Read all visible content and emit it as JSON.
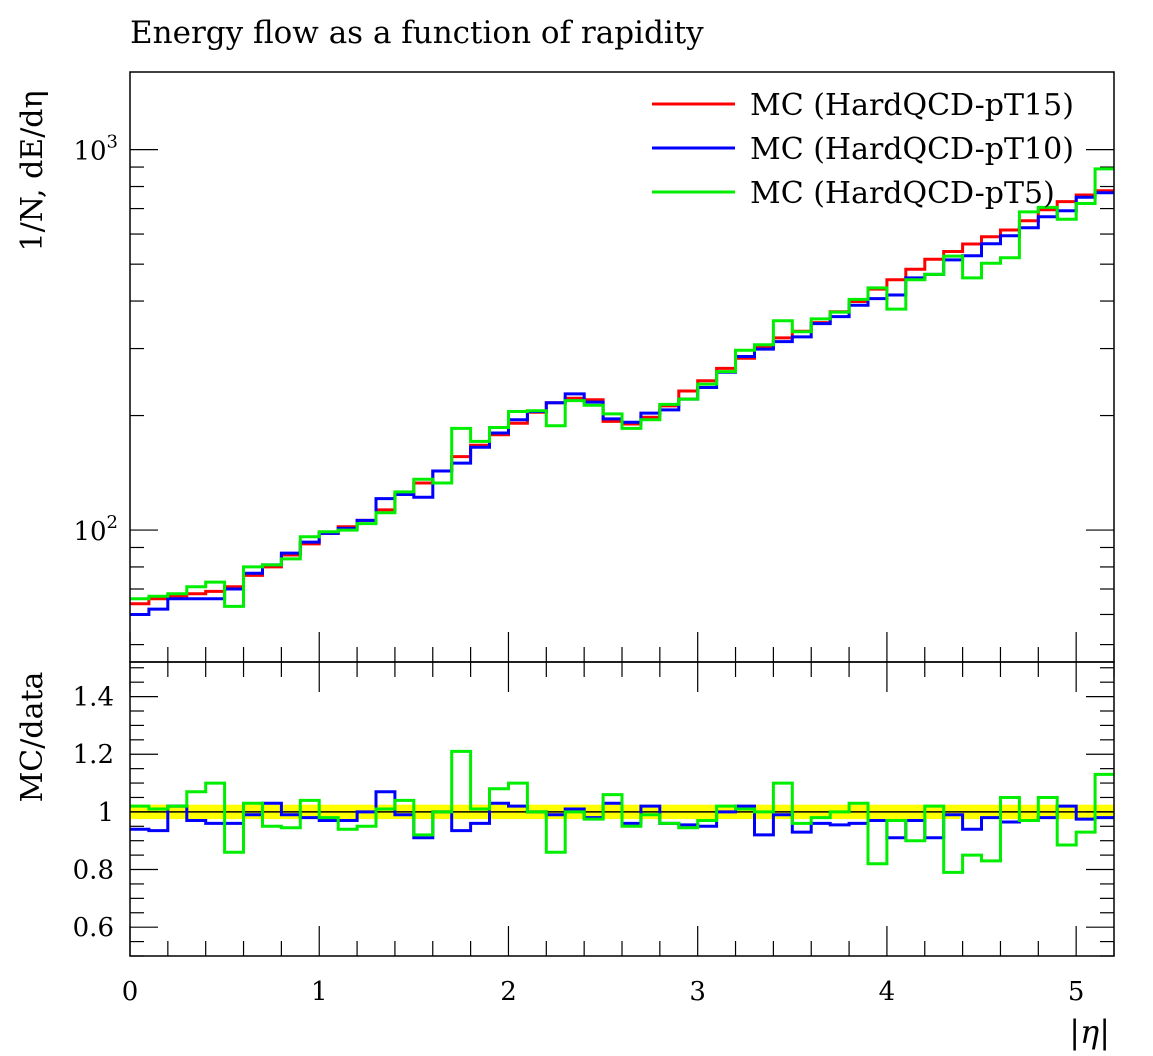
{
  "chart_data": [
    {
      "type": "line",
      "title": "Energy flow as a function of rapidity",
      "ylabel": "1/N, dE/dη",
      "yscale": "log",
      "ylim": [
        45,
        1600
      ],
      "xlim": [
        0,
        5.2
      ],
      "y_ticks": [
        {
          "value": 100,
          "label_base": "10",
          "label_exp": "2"
        },
        {
          "value": 1000,
          "label_base": "10",
          "label_exp": "3"
        }
      ],
      "legend": {
        "position": "top-right"
      },
      "bin_edges": [
        0,
        0.1,
        0.2,
        0.3,
        0.4,
        0.5,
        0.6,
        0.7,
        0.8,
        0.9,
        1.0,
        1.1,
        1.2,
        1.3,
        1.4,
        1.5,
        1.6,
        1.7,
        1.8,
        1.9,
        2.0,
        2.1,
        2.2,
        2.3,
        2.4,
        2.5,
        2.6,
        2.7,
        2.8,
        2.9,
        3.0,
        3.1,
        3.2,
        3.3,
        3.4,
        3.5,
        3.6,
        3.7,
        3.8,
        3.9,
        4.0,
        4.1,
        4.2,
        4.3,
        4.4,
        4.5,
        4.6,
        4.7,
        4.8,
        4.9,
        5.0,
        5.1,
        5.2
      ],
      "series": [
        {
          "name": "MC (HardQCD-pT15)",
          "color": "#ff0000",
          "values": [
            64,
            66,
            67,
            68,
            69,
            71,
            76,
            80,
            86,
            92,
            98,
            102,
            106,
            113,
            124,
            133,
            143,
            156,
            167,
            178,
            191,
            204,
            216,
            222,
            220,
            193,
            190,
            198,
            212,
            232,
            247,
            266,
            283,
            302,
            320,
            333,
            351,
            375,
            399,
            430,
            455,
            485,
            515,
            540,
            565,
            590,
            615,
            650,
            695,
            730,
            760,
            780
          ]
        },
        {
          "name": "MC (HardQCD-pT10)",
          "color": "#0000ff",
          "values": [
            60,
            62,
            66,
            66,
            66,
            70,
            77,
            81,
            87,
            93,
            98,
            101,
            106,
            121,
            124,
            122,
            143,
            150,
            165,
            180,
            195,
            205,
            216,
            228,
            217,
            196,
            192,
            203,
            207,
            221,
            237,
            260,
            286,
            299,
            313,
            322,
            349,
            364,
            390,
            406,
            415,
            460,
            470,
            513,
            526,
            566,
            594,
            623,
            666,
            691,
            750,
            770
          ]
        },
        {
          "name": "MC (HardQCD-pT5)",
          "color": "#00ee00",
          "values": [
            66,
            67,
            68,
            71,
            73,
            63,
            80,
            81,
            84,
            96,
            99,
            100,
            104,
            111,
            126,
            136,
            133,
            185,
            171,
            186,
            205,
            206,
            188,
            219,
            213,
            202,
            185,
            195,
            214,
            221,
            242,
            261,
            297,
            307,
            355,
            332,
            359,
            374,
            404,
            433,
            381,
            455,
            470,
            525,
            460,
            503,
            520,
            686,
            705,
            656,
            722,
            890
          ]
        }
      ]
    },
    {
      "type": "line",
      "ylabel": "MC/data",
      "xlabel": "|η|",
      "ylim": [
        0.5,
        1.52
      ],
      "xlim": [
        0,
        5.2
      ],
      "y_ticks": [
        0.6,
        0.8,
        1.0,
        1.2,
        1.4
      ],
      "y_tick_labels": [
        "0.6",
        "0.8",
        "1",
        "1.2",
        "1.4"
      ],
      "x_ticks": [
        0,
        1,
        2,
        3,
        4,
        5
      ],
      "x_tick_labels": [
        "0",
        "1",
        "2",
        "3",
        "4",
        "5"
      ],
      "reference_line": 1.0,
      "band": {
        "low": 0.975,
        "high": 1.025,
        "color": "#ffff00"
      },
      "bin_edges": [
        0,
        0.1,
        0.2,
        0.3,
        0.4,
        0.5,
        0.6,
        0.7,
        0.8,
        0.9,
        1.0,
        1.1,
        1.2,
        1.3,
        1.4,
        1.5,
        1.6,
        1.7,
        1.8,
        1.9,
        2.0,
        2.1,
        2.2,
        2.3,
        2.4,
        2.5,
        2.6,
        2.7,
        2.8,
        2.9,
        3.0,
        3.1,
        3.2,
        3.3,
        3.4,
        3.5,
        3.6,
        3.7,
        3.8,
        3.9,
        4.0,
        4.1,
        4.2,
        4.3,
        4.4,
        4.5,
        4.6,
        4.7,
        4.8,
        4.9,
        5.0,
        5.1,
        5.2
      ],
      "series": [
        {
          "name": "MC (HardQCD-pT10)",
          "color": "#0000ff",
          "values": [
            0.94,
            0.935,
            1.02,
            0.97,
            0.96,
            0.96,
            0.99,
            1.03,
            0.99,
            0.98,
            0.97,
            0.97,
            1.0,
            1.07,
            0.99,
            0.91,
            1.0,
            0.935,
            0.96,
            1.03,
            1.02,
            1.0,
            0.99,
            1.01,
            0.98,
            1.03,
            0.96,
            1.02,
            0.96,
            0.955,
            0.95,
            1.0,
            1.02,
            0.92,
            0.99,
            0.93,
            0.96,
            0.955,
            0.96,
            0.97,
            0.91,
            0.97,
            0.91,
            0.99,
            0.94,
            0.98,
            0.965,
            0.97,
            0.98,
            1.02,
            0.975,
            0.98
          ]
        },
        {
          "name": "MC (HardQCD-pT5)",
          "color": "#00ee00",
          "values": [
            1.02,
            1.01,
            1.02,
            1.07,
            1.1,
            0.86,
            1.03,
            0.95,
            0.945,
            1.04,
            0.98,
            0.94,
            0.95,
            1.01,
            1.04,
            0.92,
            1.0,
            1.21,
            1.01,
            1.08,
            1.1,
            1.0,
            0.86,
            1.0,
            0.975,
            1.06,
            0.95,
            0.99,
            0.96,
            0.945,
            0.97,
            1.02,
            1.01,
            1.0,
            1.1,
            0.96,
            0.98,
            1.0,
            1.03,
            0.82,
            0.97,
            0.9,
            1.02,
            0.79,
            0.85,
            0.83,
            1.05,
            0.97,
            1.05,
            0.885,
            0.93,
            1.13
          ]
        }
      ]
    }
  ]
}
